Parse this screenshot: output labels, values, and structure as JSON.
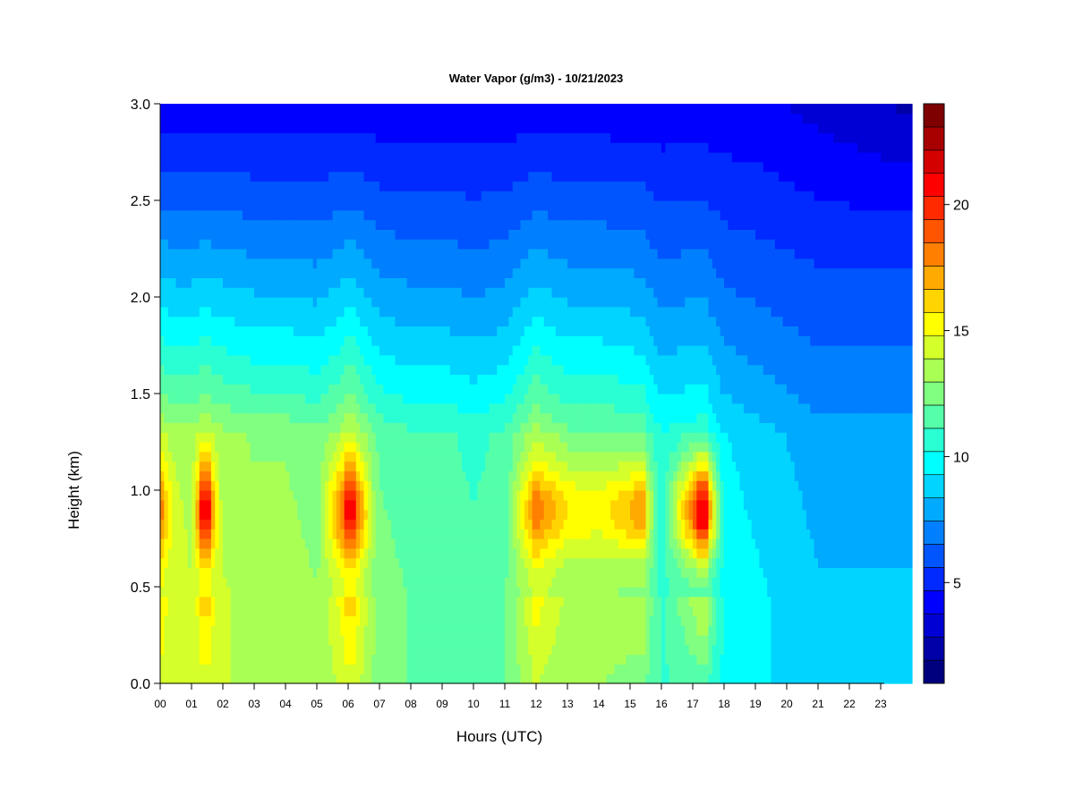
{
  "chart_data": {
    "type": "heatmap",
    "title": "Water Vapor (g/m3) - 10/21/2023",
    "xlabel": "Hours (UTC)",
    "ylabel": "Height (km)",
    "xlim": [
      0,
      24
    ],
    "ylim": [
      0,
      3
    ],
    "x_ticks": [
      {
        "value": 0,
        "label": "00"
      },
      {
        "value": 1,
        "label": "01"
      },
      {
        "value": 2,
        "label": "02"
      },
      {
        "value": 3,
        "label": "03"
      },
      {
        "value": 4,
        "label": "04"
      },
      {
        "value": 5,
        "label": "05"
      },
      {
        "value": 6,
        "label": "06"
      },
      {
        "value": 7,
        "label": "07"
      },
      {
        "value": 8,
        "label": "08"
      },
      {
        "value": 9,
        "label": "09"
      },
      {
        "value": 10,
        "label": "10"
      },
      {
        "value": 11,
        "label": "11"
      },
      {
        "value": 12,
        "label": "12"
      },
      {
        "value": 13,
        "label": "13"
      },
      {
        "value": 14,
        "label": "14"
      },
      {
        "value": 15,
        "label": "15"
      },
      {
        "value": 16,
        "label": "16"
      },
      {
        "value": 17,
        "label": "17"
      },
      {
        "value": 18,
        "label": "18"
      },
      {
        "value": 19,
        "label": "19"
      },
      {
        "value": 20,
        "label": "20"
      },
      {
        "value": 21,
        "label": "21"
      },
      {
        "value": 22,
        "label": "22"
      },
      {
        "value": 23,
        "label": "23"
      }
    ],
    "y_ticks": [
      {
        "value": 0.0,
        "label": "0.0"
      },
      {
        "value": 0.5,
        "label": "0.5"
      },
      {
        "value": 1.0,
        "label": "1.0"
      },
      {
        "value": 1.5,
        "label": "1.5"
      },
      {
        "value": 2.0,
        "label": "2.0"
      },
      {
        "value": 2.5,
        "label": "2.5"
      },
      {
        "value": 3.0,
        "label": "3.0"
      }
    ],
    "colorbar": {
      "range": [
        1,
        24
      ],
      "ticks": [
        {
          "value": 5,
          "label": "5"
        },
        {
          "value": 10,
          "label": "10"
        },
        {
          "value": 15,
          "label": "15"
        },
        {
          "value": 20,
          "label": "20"
        }
      ],
      "colors": [
        "#00007f",
        "#0000a8",
        "#0000d4",
        "#0000ff",
        "#002aff",
        "#0055ff",
        "#0080ff",
        "#00aaff",
        "#00d4ff",
        "#00ffff",
        "#2affd4",
        "#55ffaa",
        "#80ff80",
        "#aaff55",
        "#d4ff2a",
        "#ffff00",
        "#ffd400",
        "#ffaa00",
        "#ff8000",
        "#ff5500",
        "#ff2a00",
        "#ff0000",
        "#d40000",
        "#a80000",
        "#7f0000"
      ]
    },
    "grid": false,
    "legend": "colorbar-right",
    "profile_columns": [
      {
        "hour": 0.0,
        "surface": 14.5,
        "peak": 18.0
      },
      {
        "hour": 0.5,
        "surface": 14.0,
        "peak": 14.5
      },
      {
        "hour": 1.0,
        "surface": 14.0,
        "peak": 14.0
      },
      {
        "hour": 1.4,
        "surface": 14.5,
        "peak": 21.0
      },
      {
        "hour": 2.0,
        "surface": 14.0,
        "peak": 13.5
      },
      {
        "hour": 3.0,
        "surface": 13.5,
        "peak": 13.0
      },
      {
        "hour": 4.0,
        "surface": 13.5,
        "peak": 12.5
      },
      {
        "hour": 5.0,
        "surface": 13.0,
        "peak": 12.5
      },
      {
        "hour": 6.1,
        "surface": 14.5,
        "peak": 21.0
      },
      {
        "hour": 7.0,
        "surface": 12.5,
        "peak": 11.5
      },
      {
        "hour": 8.0,
        "surface": 12.0,
        "peak": 11.5
      },
      {
        "hour": 9.0,
        "surface": 12.0,
        "peak": 11.5
      },
      {
        "hour": 10.0,
        "surface": 11.5,
        "peak": 11.0
      },
      {
        "hour": 11.0,
        "surface": 12.0,
        "peak": 11.5
      },
      {
        "hour": 12.0,
        "surface": 14.0,
        "peak": 18.5
      },
      {
        "hour": 13.0,
        "surface": 13.0,
        "peak": 16.0
      },
      {
        "hour": 14.0,
        "surface": 13.0,
        "peak": 15.5
      },
      {
        "hour": 15.3,
        "surface": 12.5,
        "peak": 17.5
      },
      {
        "hour": 16.0,
        "surface": 11.0,
        "peak": 10.5
      },
      {
        "hour": 17.3,
        "surface": 11.5,
        "peak": 21.5
      },
      {
        "hour": 18.0,
        "surface": 10.0,
        "peak": 10.0
      },
      {
        "hour": 19.0,
        "surface": 9.5,
        "peak": 9.5
      },
      {
        "hour": 20.0,
        "surface": 9.0,
        "peak": 9.0
      },
      {
        "hour": 21.0,
        "surface": 8.5,
        "peak": 8.5
      },
      {
        "hour": 22.0,
        "surface": 8.5,
        "peak": 8.0
      },
      {
        "hour": 23.0,
        "surface": 8.5,
        "peak": 8.0
      },
      {
        "hour": 24.0,
        "surface": 8.5,
        "peak": 8.0
      }
    ],
    "top_value_3km": 4.0
  }
}
